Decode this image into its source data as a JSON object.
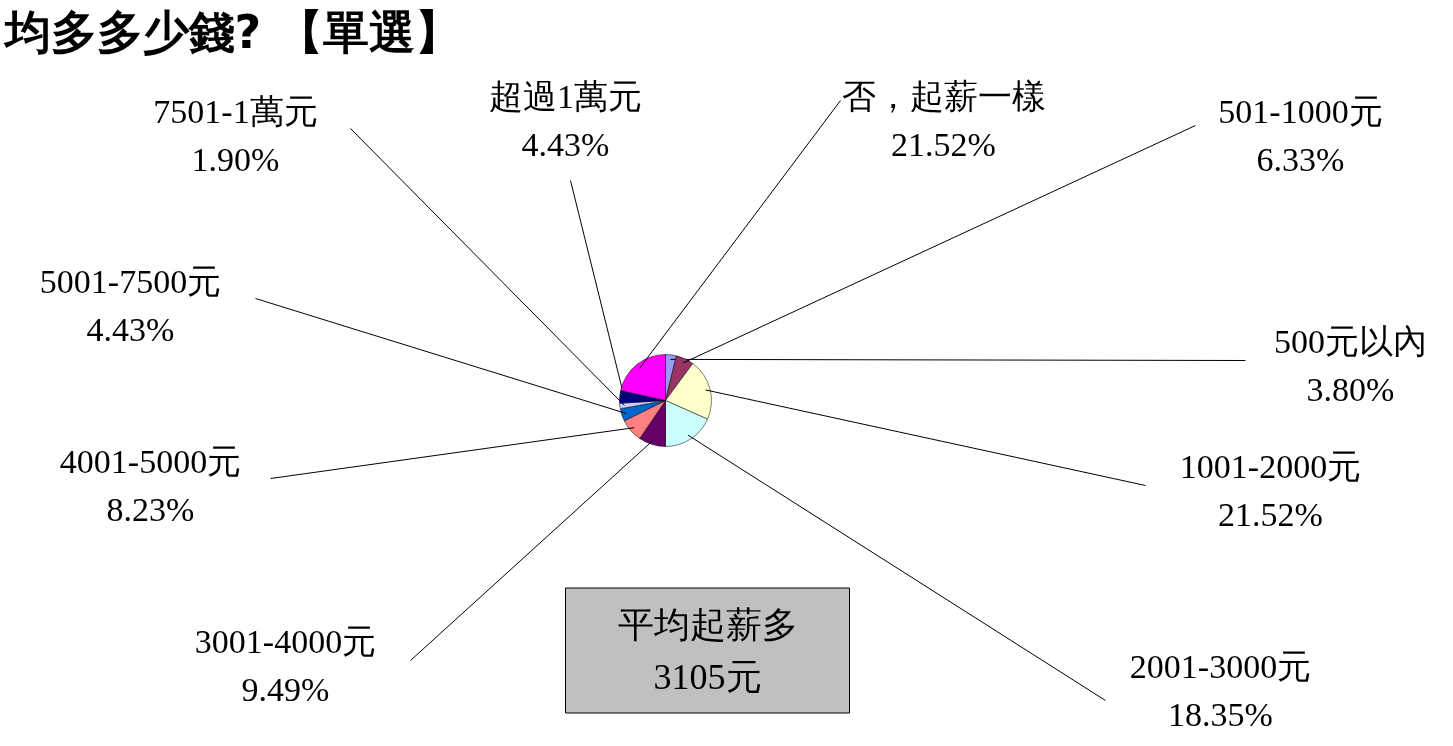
{
  "chart_data": {
    "type": "pie",
    "title": "均多多少錢? 【單選】",
    "categories": [
      "500元以內",
      "501-1000元",
      "1001-2000元",
      "2001-3000元",
      "3001-4000元",
      "4001-5000元",
      "5001-7500元",
      "7501-1萬元",
      "超過1萬元",
      "否，起薪一樣"
    ],
    "values": [
      3.8,
      6.33,
      21.52,
      18.35,
      9.49,
      8.23,
      4.43,
      1.9,
      4.43,
      21.52
    ],
    "colors": [
      "#9999ff",
      "#993366",
      "#ffffcc",
      "#ccffff",
      "#660066",
      "#ff8080",
      "#0066cc",
      "#ccccff",
      "#000080",
      "#ff00ff"
    ],
    "value_labels": [
      "3.80%",
      "6.33%",
      "21.52%",
      "18.35%",
      "9.49%",
      "8.23%",
      "4.43%",
      "1.90%",
      "4.43%",
      "21.52%"
    ],
    "annotations": [
      "平均起薪多\n3105元"
    ]
  }
}
